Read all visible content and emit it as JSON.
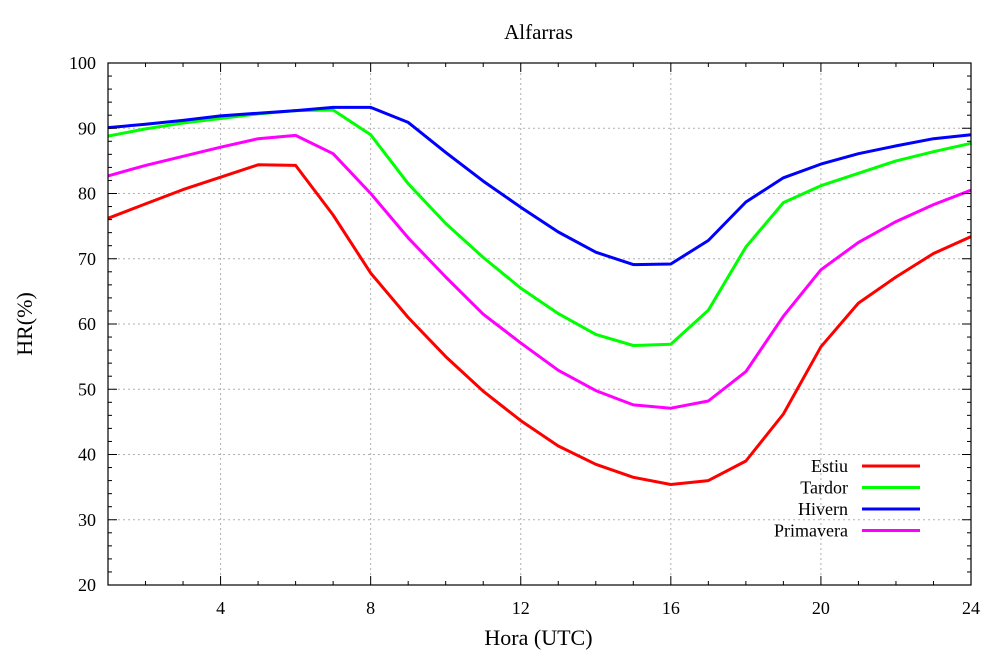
{
  "chart_data": {
    "type": "line",
    "title": "Alfarras",
    "xlabel": "Hora (UTC)",
    "ylabel": "HR(%)",
    "xlim": [
      1,
      24
    ],
    "ylim": [
      20,
      100
    ],
    "xticks": [
      4,
      8,
      12,
      16,
      20,
      24
    ],
    "yticks": [
      20,
      30,
      40,
      50,
      60,
      70,
      80,
      90,
      100
    ],
    "grid": true,
    "legend_position": "bottom-right",
    "x": [
      1,
      2,
      3,
      4,
      5,
      6,
      7,
      8,
      9,
      10,
      11,
      12,
      13,
      14,
      15,
      16,
      17,
      18,
      19,
      20,
      21,
      22,
      23,
      24
    ],
    "series": [
      {
        "name": "Estiu",
        "color": "#ff0000",
        "values": [
          76.2,
          78.4,
          80.6,
          82.5,
          84.4,
          84.3,
          76.7,
          67.8,
          61.0,
          55.0,
          49.7,
          45.2,
          41.3,
          38.5,
          36.5,
          35.4,
          36.0,
          39.0,
          46.2,
          56.5,
          63.2,
          67.2,
          70.8,
          73.4
        ]
      },
      {
        "name": "Tardor",
        "color": "#00ff00",
        "values": [
          88.8,
          89.9,
          90.8,
          91.5,
          92.2,
          92.7,
          92.8,
          89.0,
          81.5,
          75.4,
          70.2,
          65.5,
          61.6,
          58.4,
          56.7,
          56.9,
          62.1,
          71.8,
          78.6,
          81.2,
          83.1,
          85.0,
          86.4,
          87.7
        ]
      },
      {
        "name": "Hivern",
        "color": "#0000ff",
        "values": [
          90.1,
          90.6,
          91.2,
          91.9,
          92.3,
          92.7,
          93.2,
          93.2,
          90.9,
          86.3,
          81.9,
          77.9,
          74.1,
          71.0,
          69.1,
          69.2,
          72.8,
          78.7,
          82.4,
          84.5,
          86.1,
          87.3,
          88.4,
          89.0
        ]
      },
      {
        "name": "Primavera",
        "color": "#ff00ff",
        "values": [
          82.7,
          84.3,
          85.7,
          87.1,
          88.4,
          88.9,
          86.1,
          80.0,
          73.2,
          67.2,
          61.5,
          57.1,
          52.9,
          49.8,
          47.6,
          47.1,
          48.2,
          52.7,
          61.2,
          68.3,
          72.5,
          75.7,
          78.3,
          80.5
        ]
      }
    ]
  }
}
